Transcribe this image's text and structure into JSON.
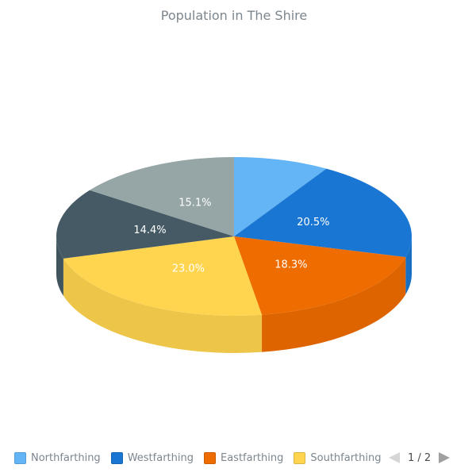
{
  "chart_data": {
    "type": "pie",
    "title": "Population in The Shire",
    "slices": [
      {
        "name": "Northfarthing",
        "value": 8.7,
        "label": "",
        "color": "#64b5f6"
      },
      {
        "name": "Westfarthing",
        "value": 20.5,
        "label": "20.5%",
        "color": "#1976d2"
      },
      {
        "name": "Eastfarthing",
        "value": 18.3,
        "label": "18.3%",
        "color": "#ef6c00"
      },
      {
        "name": "Southfarthing",
        "value": 23.0,
        "label": "23.0%",
        "color": "#ffd54f"
      },
      {
        "name": "",
        "value": 14.4,
        "label": "14.4%",
        "color": "#455a64"
      },
      {
        "name": "",
        "value": 15.1,
        "label": "15.1%",
        "color": "#96a6a6"
      }
    ],
    "legend": {
      "placement": "bottom",
      "items": [
        {
          "label": "Northfarthing",
          "color": "#64b5f6"
        },
        {
          "label": "Westfarthing",
          "color": "#1976d2"
        },
        {
          "label": "Eastfarthing",
          "color": "#ef6c00"
        },
        {
          "label": "Southfarthing",
          "color": "#ffd54f"
        }
      ]
    },
    "pager": {
      "text": "1 / 2"
    }
  }
}
